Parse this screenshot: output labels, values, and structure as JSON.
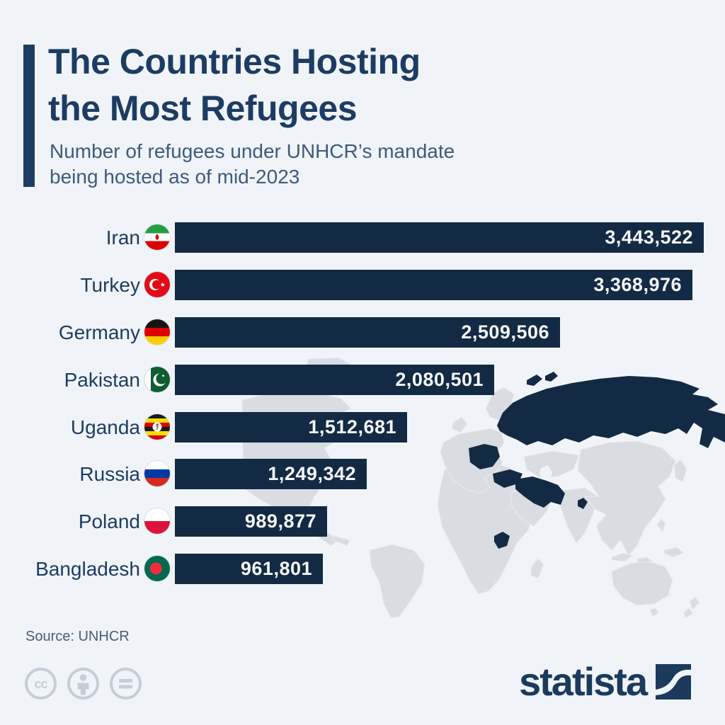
{
  "header": {
    "title_lines": [
      "The Countries Hosting",
      "the Most Refugees"
    ],
    "subtitle_lines": [
      "Number of refugees under UNHCR’s mandate",
      "being hosted as of mid-2023"
    ]
  },
  "chart_data": {
    "type": "bar",
    "orientation": "horizontal",
    "title": "The Countries Hosting the Most Refugees",
    "subtitle": "Number of refugees under UNHCR’s mandate being hosted as of mid-2023",
    "categories": [
      "Iran",
      "Turkey",
      "Germany",
      "Pakistan",
      "Uganda",
      "Russia",
      "Poland",
      "Bangladesh"
    ],
    "values": [
      3443522,
      3368976,
      2509506,
      2080501,
      1512681,
      1249342,
      989877,
      961801
    ],
    "value_labels": [
      "3,443,522",
      "3,368,976",
      "2,509,506",
      "2,080,501",
      "1,512,681",
      "1,249,342",
      "989,877",
      "961,801"
    ],
    "flags": [
      "iran",
      "turkey",
      "germany",
      "pakistan",
      "uganda",
      "russia",
      "poland",
      "bangladesh"
    ],
    "xlabel": "",
    "ylabel": "",
    "xlim": [
      0,
      3443522
    ],
    "value_label_position": "inside-right",
    "grid": false,
    "legend": false
  },
  "map": {
    "highlighted_countries": [
      "Russia",
      "Germany",
      "Poland",
      "Turkey",
      "Iran",
      "Pakistan",
      "Bangladesh",
      "Uganda"
    ],
    "land_color": "#d9dce0",
    "highlight_color": "#132a44"
  },
  "footer": {
    "source": "Source: UNHCR",
    "license_icons": [
      "cc-icon",
      "attribution-person-icon",
      "equals-icon"
    ],
    "brand": "statista"
  },
  "colors": {
    "bg": "#f0f4f8",
    "bar_navy": "#132a44",
    "title_navy": "#1d3c63",
    "subtitle_blue": "#3e5a7d",
    "land_gray": "#d9dce0",
    "muted_gray": "#c5ced8",
    "source_gray": "#4a5d73",
    "value_white": "#f4f7fa"
  }
}
